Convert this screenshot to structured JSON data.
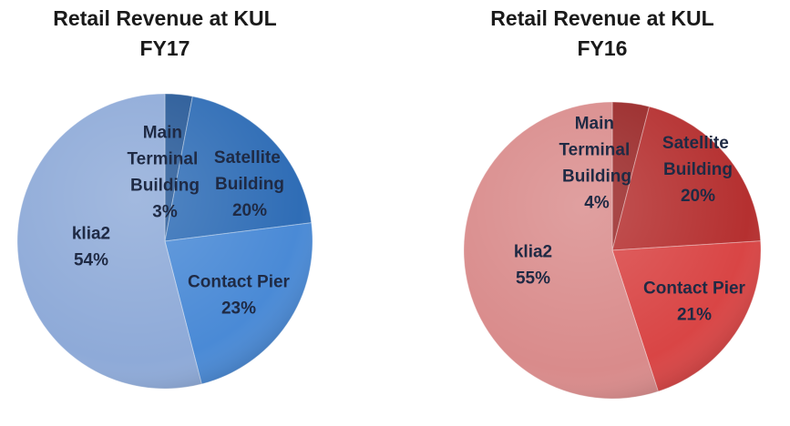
{
  "chart_data": [
    {
      "type": "pie",
      "title": "Retail Revenue at KUL",
      "subtitle": "FY17",
      "categories": [
        "Main Terminal Building",
        "Satellite Building",
        "Contact Pier",
        "klia2"
      ],
      "values": [
        3,
        20,
        23,
        54
      ],
      "value_labels": [
        "3%",
        "20%",
        "23%",
        "54%"
      ],
      "colors": [
        "#285a98",
        "#2f6db6",
        "#4a8ad6",
        "#8eaad8"
      ]
    },
    {
      "type": "pie",
      "title": "Retail Revenue at KUL",
      "subtitle": "FY16",
      "categories": [
        "Main Terminal Building",
        "Satellite Building",
        "Contact Pier",
        "klia2"
      ],
      "values": [
        4,
        20,
        21,
        55
      ],
      "value_labels": [
        "4%",
        "20%",
        "21%",
        "55%"
      ],
      "colors": [
        "#9a2828",
        "#b53030",
        "#d94545",
        "#d98b8b"
      ]
    }
  ]
}
